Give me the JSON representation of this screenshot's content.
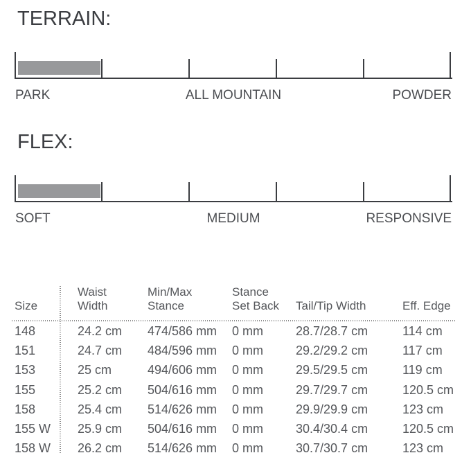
{
  "colors": {
    "background": "#ffffff",
    "scale_line": "#3b3d41",
    "bar_fill": "#98999b",
    "label_text": "#4b4d51",
    "table_text": "#55575b",
    "dotted_line": "#8c8c8c"
  },
  "chart_data": [
    {
      "type": "bar",
      "title": "TERRAIN:",
      "axis_labels": [
        "PARK",
        "ALL MOUNTAIN",
        "POWDER"
      ],
      "segments": 5,
      "value": 1,
      "range": [
        0,
        5
      ],
      "filled_segment_index": 0,
      "legend_position": "none",
      "orientation": "horizontal"
    },
    {
      "type": "bar",
      "title": "FLEX:",
      "axis_labels": [
        "SOFT",
        "MEDIUM",
        "RESPONSIVE"
      ],
      "segments": 5,
      "value": 1,
      "range": [
        0,
        5
      ],
      "filled_segment_index": 0,
      "legend_position": "none",
      "orientation": "horizontal"
    },
    {
      "type": "table",
      "columns": [
        "Size",
        "Waist\nWidth",
        "Min/Max\nStance",
        "Stance\nSet Back",
        "Tail/Tip Width",
        "Eff. Edge"
      ],
      "rows": [
        [
          "148",
          "24.2 cm",
          "474/586 mm",
          "0 mm",
          "28.7/28.7 cm",
          "114 cm"
        ],
        [
          "151",
          "24.7 cm",
          "484/596 mm",
          "0 mm",
          "29.2/29.2 cm",
          "117 cm"
        ],
        [
          "153",
          "25 cm",
          "494/606 mm",
          "0 mm",
          "29.5/29.5 cm",
          "119 cm"
        ],
        [
          "155",
          "25.2 cm",
          "504/616 mm",
          "0 mm",
          "29.7/29.7 cm",
          "120.5 cm"
        ],
        [
          "158",
          "25.4 cm",
          "514/626 mm",
          "0 mm",
          "29.9/29.9 cm",
          "123 cm"
        ],
        [
          "155 W",
          "25.9 cm",
          "504/616 mm",
          "0 mm",
          "30.4/30.4 cm",
          "120.5 cm"
        ],
        [
          "158 W",
          "26.2 cm",
          "514/626 mm",
          "0 mm",
          "30.7/30.7 cm",
          "123 cm"
        ]
      ]
    }
  ]
}
